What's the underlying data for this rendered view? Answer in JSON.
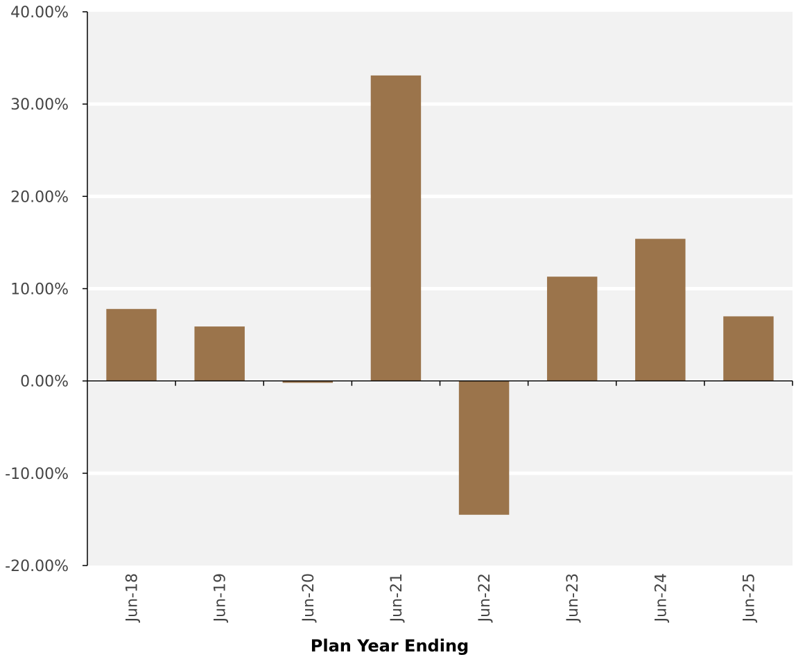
{
  "chart_data": {
    "type": "bar",
    "categories": [
      "Jun-18",
      "Jun-19",
      "Jun-20",
      "Jun-21",
      "Jun-22",
      "Jun-23",
      "Jun-24",
      "Jun-25"
    ],
    "series": [
      {
        "values": [
          7.8,
          5.9,
          -0.2,
          33.1,
          -14.5,
          11.3,
          15.4,
          7.0
        ]
      }
    ],
    "title": "",
    "xlabel": "Plan Year Ending",
    "ylabel": "",
    "ylim": [
      -20,
      40
    ],
    "yticks": [
      40,
      30,
      20,
      10,
      0,
      -10,
      -20
    ],
    "ytick_labels": [
      "40.00%",
      "30.00%",
      "20.00%",
      "10.00%",
      "0.00%",
      "-10.00%",
      "-20.00%"
    ],
    "grid": true,
    "legend": "none",
    "colors": {
      "bar": "#9b744b",
      "plot_background": "#f2f2f2",
      "gridline": "#ffffff",
      "axis": "#000000"
    }
  }
}
